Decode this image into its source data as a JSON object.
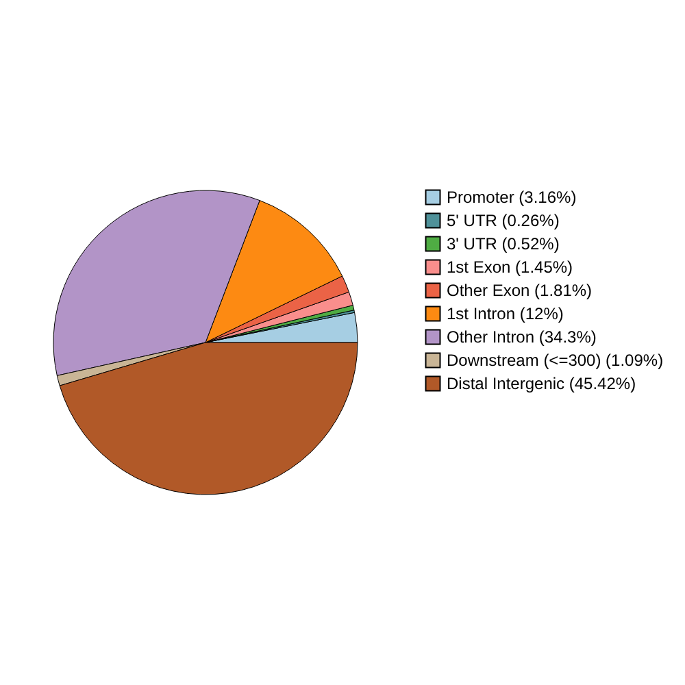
{
  "chart_data": {
    "type": "pie",
    "legend": "right",
    "categories": [
      "Promoter (3.16%)",
      "5' UTR (0.26%)",
      "3' UTR (0.52%)",
      "1st Exon (1.45%)",
      "Other Exon (1.81%)",
      "1st Intron (12%)",
      "Other Intron (34.3%)",
      "Downstream (<=300) (1.09%)",
      "Distal Intergenic (45.42%)"
    ],
    "values": [
      3.16,
      0.26,
      0.52,
      1.45,
      1.81,
      12,
      34.3,
      1.09,
      45.42
    ],
    "colors": [
      "#a6cee3",
      "#4f9199",
      "#4fac43",
      "#f98e8c",
      "#eb6346",
      "#fd8a12",
      "#b294c7",
      "#c9b596",
      "#b15928"
    ]
  }
}
